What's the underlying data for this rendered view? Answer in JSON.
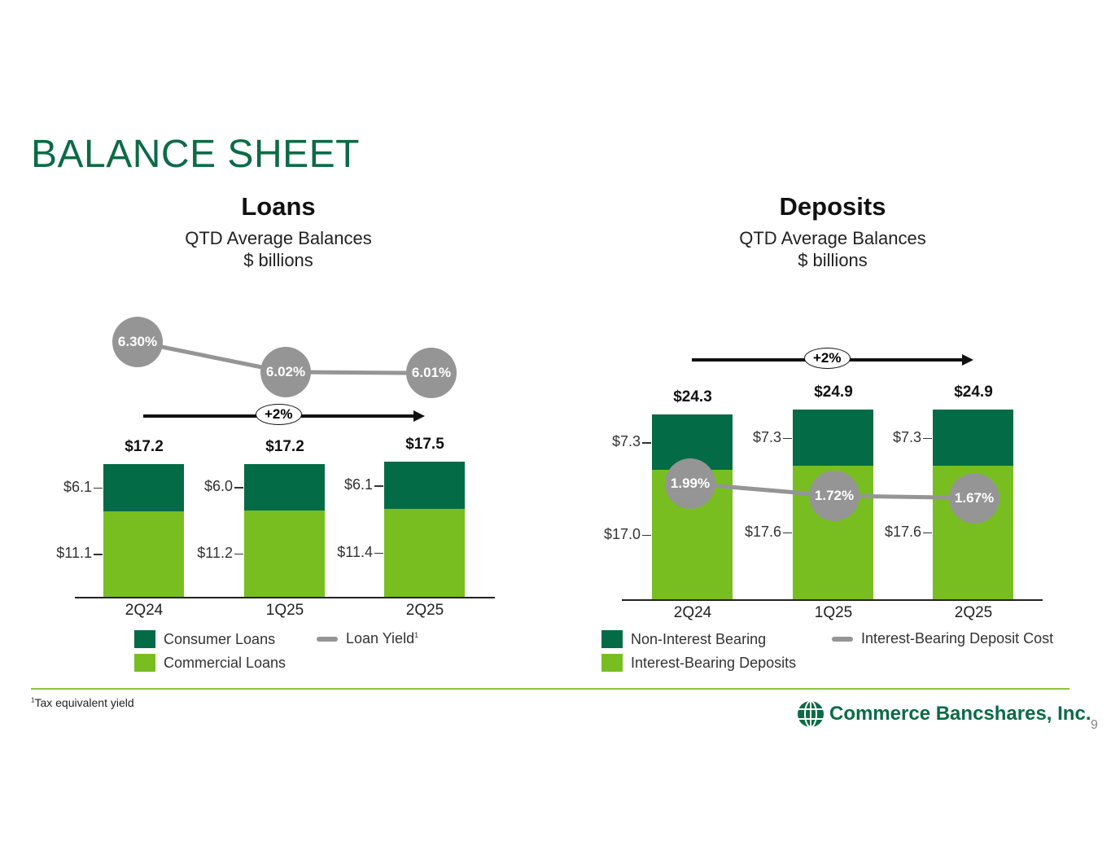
{
  "title": "BALANCE SHEET",
  "colors": {
    "dark": "#036b46",
    "light": "#78be21",
    "line": "#959595",
    "title": "#0b6b45"
  },
  "footnote": "Tax equivalent yield",
  "footnote_mark": "1",
  "logo": "Commerce Bancshares, Inc.",
  "page_number": "9",
  "chart_data": [
    {
      "type": "bar",
      "stacked": true,
      "title": "Loans",
      "subtitle": "QTD Average Balances",
      "unit": "$ billions",
      "categories": [
        "2Q24",
        "1Q25",
        "2Q25"
      ],
      "series": [
        {
          "name": "Commercial Loans",
          "values": [
            11.1,
            11.2,
            11.4
          ],
          "labels": [
            "$11.1",
            "$11.2",
            "$11.4"
          ]
        },
        {
          "name": "Consumer Loans",
          "values": [
            6.1,
            6.0,
            6.1
          ],
          "labels": [
            "$6.1",
            "$6.0",
            "$6.1"
          ]
        }
      ],
      "totals": [
        "$17.2",
        "$17.2",
        "$17.5"
      ],
      "line": {
        "name": "Loan Yield",
        "values": [
          6.3,
          6.02,
          6.01
        ],
        "labels": [
          "6.30%",
          "6.02%",
          "6.01%"
        ]
      },
      "growth": "+2%",
      "legend": [
        "Consumer Loans",
        "Loan Yield",
        "Commercial Loans"
      ]
    },
    {
      "type": "bar",
      "stacked": true,
      "title": "Deposits",
      "subtitle": "QTD Average Balances",
      "unit": "$ billions",
      "categories": [
        "2Q24",
        "1Q25",
        "2Q25"
      ],
      "series": [
        {
          "name": "Interest-Bearing Deposits",
          "values": [
            17.0,
            17.6,
            17.6
          ],
          "labels": [
            "$17.0",
            "$17.6",
            "$17.6"
          ]
        },
        {
          "name": "Non-Interest Bearing",
          "values": [
            7.3,
            7.3,
            7.3
          ],
          "labels": [
            "$7.3",
            "$7.3",
            "$7.3"
          ]
        }
      ],
      "totals": [
        "$24.3",
        "$24.9",
        "$24.9"
      ],
      "line": {
        "name": "Interest-Bearing Deposit Cost",
        "values": [
          1.99,
          1.72,
          1.67
        ],
        "labels": [
          "1.99%",
          "1.72%",
          "1.67%"
        ]
      },
      "growth": "+2%",
      "legend": [
        "Non-Interest Bearing",
        "Interest-Bearing Deposit Cost",
        "Interest-Bearing Deposits"
      ]
    }
  ]
}
